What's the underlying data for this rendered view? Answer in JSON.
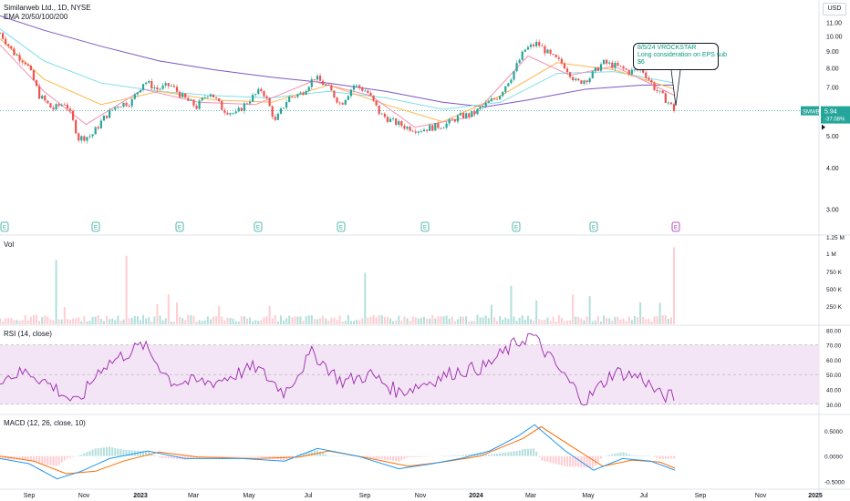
{
  "header": {
    "symbol_line": "Similarweb Ltd., 1D, NYSE",
    "ema_label": "EMA 20/50/100/200",
    "currency": "USD"
  },
  "annotation": {
    "line1": "8/5/24 VROCKSTAR",
    "line2": "Long consideration on EPS sub",
    "line3": "$6"
  },
  "price_tag": {
    "symbol": "SMWB",
    "price": "5.94",
    "change": "-37.08%"
  },
  "panes": {
    "volume_label": "Vol",
    "rsi_label": "RSI (14, close)",
    "macd_label": "MACD (12, 26, close, 10)"
  },
  "colors": {
    "up": "#26a69a",
    "down": "#ef5350",
    "ema20": "#f48fb1",
    "ema50": "#ffb74d",
    "ema100": "#80deea",
    "ema200": "#7e57c2",
    "rsi": "#9c27b0",
    "rsi_band": "#f3e5f5",
    "macd": "#2196f3",
    "signal": "#ff6d00",
    "hist_up": "#b2dfdb",
    "hist_down": "#ffcdd2"
  },
  "chart_data": {
    "type": "line",
    "title": "Similarweb Ltd., 1D, NYSE",
    "x_labels": [
      "Sep",
      "Nov",
      "2023",
      "Mar",
      "May",
      "Jul",
      "Sep",
      "Nov",
      "2024",
      "Mar",
      "May",
      "Jul",
      "Sep",
      "Nov",
      "2025"
    ],
    "price_axis": {
      "ticks": [
        "11.00",
        "10.00",
        "9.00",
        "8.00",
        "7.00",
        "5.00",
        "4.00",
        "3.00"
      ],
      "scale": "log",
      "range": [
        2.6,
        12.2
      ]
    },
    "earnings_markers": [
      "E",
      "E",
      "E",
      "E",
      "E",
      "E",
      "E",
      "E",
      "E"
    ],
    "price_points": [
      [
        "2022-08-15",
        10.2
      ],
      [
        "2022-08-29",
        8.9
      ],
      [
        "2022-09-12",
        8.3
      ],
      [
        "2022-09-26",
        6.6
      ],
      [
        "2022-10-10",
        6.0
      ],
      [
        "2022-10-24",
        6.3
      ],
      [
        "2022-11-07",
        4.9
      ],
      [
        "2022-11-21",
        5.0
      ],
      [
        "2022-12-05",
        5.7
      ],
      [
        "2022-12-19",
        6.2
      ],
      [
        "2023-01-02",
        6.3
      ],
      [
        "2023-01-16",
        7.3
      ],
      [
        "2023-01-30",
        6.9
      ],
      [
        "2023-02-13",
        7.1
      ],
      [
        "2023-02-27",
        6.5
      ],
      [
        "2023-03-13",
        6.1
      ],
      [
        "2023-03-27",
        6.8
      ],
      [
        "2023-04-10",
        6.0
      ],
      [
        "2023-04-24",
        5.8
      ],
      [
        "2023-05-08",
        6.4
      ],
      [
        "2023-05-22",
        6.9
      ],
      [
        "2023-06-05",
        5.5
      ],
      [
        "2023-06-19",
        6.5
      ],
      [
        "2023-07-03",
        6.7
      ],
      [
        "2023-07-17",
        7.5
      ],
      [
        "2023-07-31",
        7.0
      ],
      [
        "2023-08-14",
        6.2
      ],
      [
        "2023-08-28",
        7.1
      ],
      [
        "2023-09-11",
        6.8
      ],
      [
        "2023-09-25",
        5.8
      ],
      [
        "2023-10-09",
        5.5
      ],
      [
        "2023-10-23",
        5.3
      ],
      [
        "2023-11-06",
        5.2
      ],
      [
        "2023-11-20",
        5.3
      ],
      [
        "2023-12-04",
        5.4
      ],
      [
        "2023-12-18",
        5.7
      ],
      [
        "2024-01-02",
        5.8
      ],
      [
        "2024-01-16",
        6.2
      ],
      [
        "2024-01-30",
        6.6
      ],
      [
        "2024-02-13",
        7.6
      ],
      [
        "2024-02-27",
        9.1
      ],
      [
        "2024-03-11",
        9.5
      ],
      [
        "2024-03-25",
        8.7
      ],
      [
        "2024-04-08",
        8.2
      ],
      [
        "2024-04-22",
        7.2
      ],
      [
        "2024-05-06",
        7.5
      ],
      [
        "2024-05-20",
        8.3
      ],
      [
        "2024-06-03",
        8.1
      ],
      [
        "2024-06-17",
        7.8
      ],
      [
        "2024-07-01",
        7.9
      ],
      [
        "2024-07-15",
        6.9
      ],
      [
        "2024-07-29",
        6.3
      ],
      [
        "2024-08-05",
        5.94
      ]
    ],
    "ema200_points": [
      [
        "2022-08-15",
        11.5
      ],
      [
        "2022-10-01",
        10.4
      ],
      [
        "2022-12-01",
        9.3
      ],
      [
        "2023-02-01",
        8.4
      ],
      [
        "2023-04-01",
        7.9
      ],
      [
        "2023-06-01",
        7.5
      ],
      [
        "2023-08-01",
        7.2
      ],
      [
        "2023-10-01",
        6.8
      ],
      [
        "2023-12-01",
        6.3
      ],
      [
        "2024-01-15",
        6.1
      ],
      [
        "2024-03-01",
        6.4
      ],
      [
        "2024-05-01",
        6.9
      ],
      [
        "2024-07-01",
        7.1
      ],
      [
        "2024-08-05",
        7.1
      ]
    ],
    "ema100_points": [
      [
        "2022-08-15",
        10.5
      ],
      [
        "2022-10-01",
        8.4
      ],
      [
        "2022-12-01",
        7.2
      ],
      [
        "2023-02-01",
        6.8
      ],
      [
        "2023-04-01",
        6.6
      ],
      [
        "2023-06-01",
        6.5
      ],
      [
        "2023-08-01",
        6.8
      ],
      [
        "2023-10-01",
        6.5
      ],
      [
        "2023-12-01",
        6.0
      ],
      [
        "2024-02-01",
        6.3
      ],
      [
        "2024-04-01",
        7.7
      ],
      [
        "2024-06-01",
        7.8
      ],
      [
        "2024-08-05",
        7.2
      ]
    ],
    "ema50_points": [
      [
        "2022-08-15",
        9.8
      ],
      [
        "2022-10-01",
        7.4
      ],
      [
        "2022-12-01",
        6.2
      ],
      [
        "2023-02-01",
        6.8
      ],
      [
        "2023-04-01",
        6.4
      ],
      [
        "2023-06-01",
        6.3
      ],
      [
        "2023-08-01",
        7.1
      ],
      [
        "2023-10-01",
        6.2
      ],
      [
        "2023-12-01",
        5.5
      ],
      [
        "2024-02-01",
        6.6
      ],
      [
        "2024-04-01",
        8.3
      ],
      [
        "2024-06-01",
        7.9
      ],
      [
        "2024-08-05",
        6.9
      ]
    ],
    "ema20_points": [
      [
        "2022-08-15",
        9.4
      ],
      [
        "2022-10-01",
        6.8
      ],
      [
        "2022-11-15",
        5.4
      ],
      [
        "2023-01-15",
        6.9
      ],
      [
        "2023-03-15",
        6.3
      ],
      [
        "2023-05-15",
        6.2
      ],
      [
        "2023-07-15",
        7.3
      ],
      [
        "2023-09-15",
        6.6
      ],
      [
        "2023-11-01",
        5.3
      ],
      [
        "2024-01-01",
        5.7
      ],
      [
        "2024-03-01",
        8.7
      ],
      [
        "2024-04-15",
        7.6
      ],
      [
        "2024-06-01",
        8.1
      ],
      [
        "2024-08-05",
        6.6
      ]
    ],
    "volume_axis": {
      "ticks": [
        "1.25 M",
        "1 M",
        "750 K",
        "500 K",
        "250 K"
      ]
    },
    "rsi": {
      "axis_ticks": [
        "80.00",
        "70.00",
        "60.00",
        "50.00",
        "40.00",
        "30.00"
      ],
      "band": [
        30,
        70
      ],
      "points": [
        [
          "2022-08-15",
          48
        ],
        [
          "2022-09-15",
          52
        ],
        [
          "2022-10-15",
          40
        ],
        [
          "2022-11-05",
          30
        ],
        [
          "2022-12-01",
          55
        ],
        [
          "2023-01-15",
          70
        ],
        [
          "2023-02-15",
          45
        ],
        [
          "2023-04-01",
          45
        ],
        [
          "2023-05-15",
          55
        ],
        [
          "2023-06-15",
          38
        ],
        [
          "2023-07-15",
          65
        ],
        [
          "2023-08-15",
          45
        ],
        [
          "2023-09-15",
          50
        ],
        [
          "2023-10-15",
          38
        ],
        [
          "2023-11-15",
          45
        ],
        [
          "2023-12-15",
          52
        ],
        [
          "2024-01-15",
          55
        ],
        [
          "2024-02-15",
          70
        ],
        [
          "2024-03-05",
          77
        ],
        [
          "2024-04-01",
          55
        ],
        [
          "2024-05-01",
          32
        ],
        [
          "2024-06-01",
          52
        ],
        [
          "2024-07-01",
          48
        ],
        [
          "2024-07-20",
          36
        ],
        [
          "2024-08-05",
          35
        ]
      ]
    },
    "macd": {
      "axis_ticks": [
        "0.5000",
        "0.0000",
        "-0.5000"
      ],
      "macd_points": [
        [
          "2022-08-15",
          -0.05
        ],
        [
          "2022-09-15",
          -0.15
        ],
        [
          "2022-10-15",
          -0.45
        ],
        [
          "2022-11-10",
          -0.3
        ],
        [
          "2022-12-10",
          -0.05
        ],
        [
          "2023-01-20",
          0.1
        ],
        [
          "2023-03-01",
          -0.05
        ],
        [
          "2023-05-01",
          -0.05
        ],
        [
          "2023-06-15",
          -0.1
        ],
        [
          "2023-07-20",
          0.15
        ],
        [
          "2023-09-01",
          0.0
        ],
        [
          "2023-10-15",
          -0.25
        ],
        [
          "2023-11-20",
          -0.15
        ],
        [
          "2023-12-20",
          -0.05
        ],
        [
          "2024-01-20",
          0.1
        ],
        [
          "2024-02-20",
          0.4
        ],
        [
          "2024-03-08",
          0.62
        ],
        [
          "2024-04-10",
          0.1
        ],
        [
          "2024-05-10",
          -0.28
        ],
        [
          "2024-06-10",
          -0.05
        ],
        [
          "2024-07-10",
          -0.1
        ],
        [
          "2024-08-05",
          -0.28
        ]
      ],
      "signal_points": [
        [
          "2022-08-15",
          0.0
        ],
        [
          "2022-09-20",
          -0.1
        ],
        [
          "2022-10-25",
          -0.35
        ],
        [
          "2022-11-25",
          -0.3
        ],
        [
          "2022-12-25",
          -0.1
        ],
        [
          "2023-02-01",
          0.08
        ],
        [
          "2023-03-15",
          -0.02
        ],
        [
          "2023-05-15",
          -0.05
        ],
        [
          "2023-07-01",
          -0.02
        ],
        [
          "2023-08-01",
          0.1
        ],
        [
          "2023-09-15",
          -0.05
        ],
        [
          "2023-10-25",
          -0.2
        ],
        [
          "2023-12-01",
          -0.12
        ],
        [
          "2024-01-10",
          0.0
        ],
        [
          "2024-02-25",
          0.35
        ],
        [
          "2024-03-15",
          0.58
        ],
        [
          "2024-04-20",
          0.15
        ],
        [
          "2024-05-20",
          -0.2
        ],
        [
          "2024-06-20",
          -0.08
        ],
        [
          "2024-07-20",
          -0.12
        ],
        [
          "2024-08-05",
          -0.24
        ]
      ]
    }
  }
}
